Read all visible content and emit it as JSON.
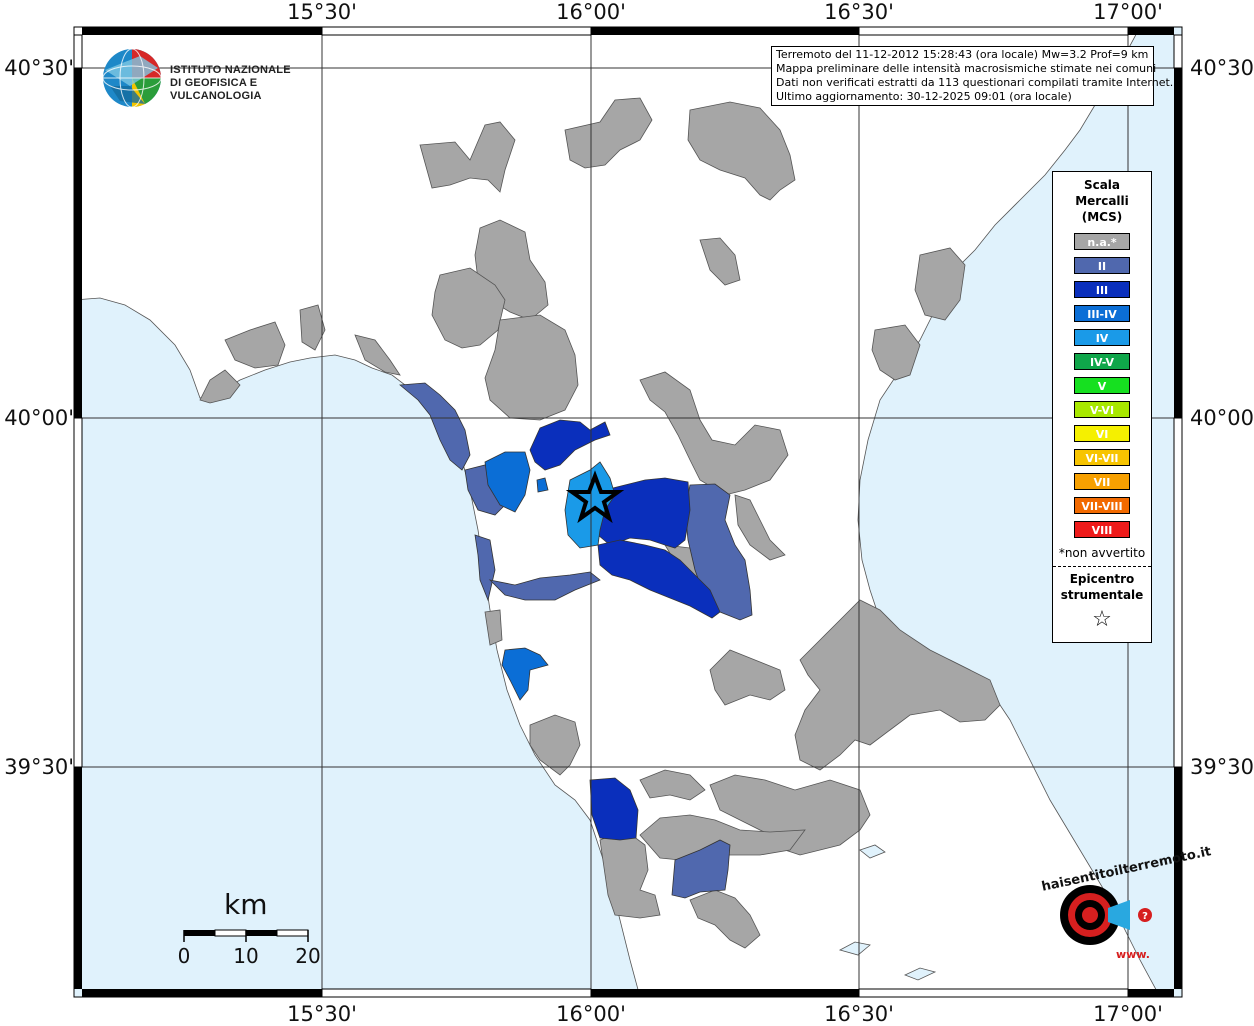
{
  "map": {
    "lon_labels": [
      "15°30'",
      "16°00'",
      "16°30'",
      "17°00'"
    ],
    "lat_labels": [
      "40°30'",
      "40°00'",
      "39°30'"
    ]
  },
  "info": {
    "line1": "Terremoto del 11-12-2012 15:28:43 (ora locale) Mw=3.2 Prof=9 km",
    "line2": "Mappa preliminare delle intensità macrosismiche stimate nei comuni",
    "line3": "Dati non verificati estratti da 113 questionari compilati tramite Internet.",
    "line4": "Ultimo aggiornamento: 30-12-2025 09:01 (ora locale)"
  },
  "legend": {
    "title_1": "Scala",
    "title_2": "Mercalli",
    "title_3": "(MCS)",
    "items": [
      {
        "label": "n.a.*",
        "color": "#a6a6a6"
      },
      {
        "label": "II",
        "color": "#5068ae"
      },
      {
        "label": "III",
        "color": "#0a2fbc"
      },
      {
        "label": "III-IV",
        "color": "#0b6ed6"
      },
      {
        "label": "IV",
        "color": "#1a9ae8"
      },
      {
        "label": "IV-V",
        "color": "#0fa64a"
      },
      {
        "label": "V",
        "color": "#16e020"
      },
      {
        "label": "V-VI",
        "color": "#a8e800"
      },
      {
        "label": "VI",
        "color": "#f5f000"
      },
      {
        "label": "VI-VII",
        "color": "#f7c400"
      },
      {
        "label": "VII",
        "color": "#f7a000"
      },
      {
        "label": "VII-VIII",
        "color": "#f26a00"
      },
      {
        "label": "VIII",
        "color": "#ee1b1b"
      }
    ],
    "note": "*non avvertito",
    "epicenter_1": "Epicentro",
    "epicenter_2": "strumentale",
    "star": "☆"
  },
  "logo": {
    "line1": "ISTITUTO NAZIONALE",
    "line2": "DI GEOFISICA E VULCANOLOGIA"
  },
  "scalebar": {
    "unit": "km",
    "ticks": [
      "0",
      "10",
      "20"
    ]
  },
  "hst_logo": {
    "text": "haisentitoilterremoto.it",
    "www": "www."
  },
  "colors": {
    "sea": "#e0f2fc",
    "land": "#ffffff",
    "na": "#a6a6a6",
    "ii": "#5068ae",
    "iii": "#0a2fbc",
    "iii_iv": "#0b6ed6",
    "iv": "#1a9ae8"
  }
}
